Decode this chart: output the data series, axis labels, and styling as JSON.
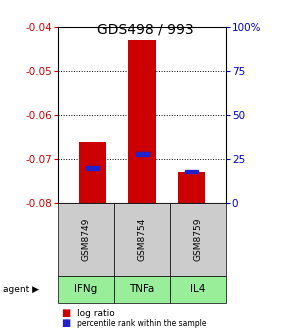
{
  "title": "GDS498 / 993",
  "samples": [
    "GSM8749",
    "GSM8754",
    "GSM8759"
  ],
  "agents": [
    "IFNg",
    "TNFa",
    "IL4"
  ],
  "log_ratios": [
    -0.066,
    -0.043,
    -0.073
  ],
  "log_ratio_base": -0.08,
  "percentile_ranks": [
    20,
    28,
    18
  ],
  "ylim_left": [
    -0.08,
    -0.04
  ],
  "yticks_left": [
    -0.08,
    -0.07,
    -0.06,
    -0.05,
    -0.04
  ],
  "yticks_right": [
    0,
    25,
    50,
    75,
    100
  ],
  "bar_color": "#cc0000",
  "percentile_color": "#2222cc",
  "agent_bg_color": "#99ee99",
  "sample_bg_color": "#cccccc",
  "title_fontsize": 10,
  "tick_fontsize": 7.5,
  "bar_width": 0.55
}
